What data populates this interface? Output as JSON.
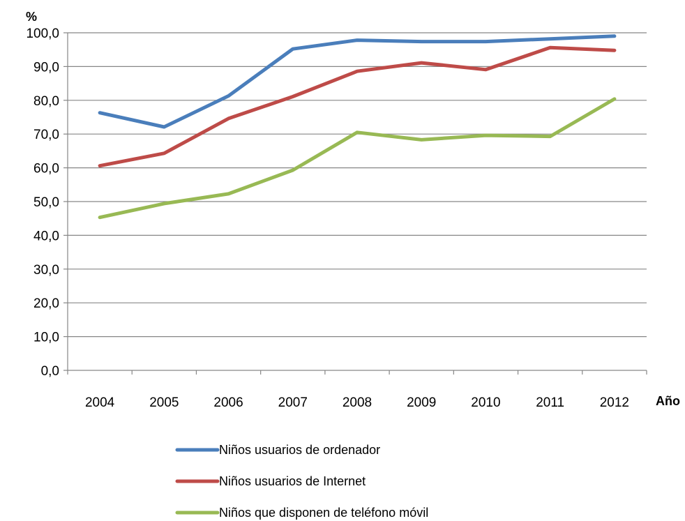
{
  "chart_data": {
    "type": "line",
    "ylabel": "%",
    "xlabel": "Año",
    "ylim": [
      0,
      100
    ],
    "ytick_step": 10,
    "ytick_labels": [
      "0,0",
      "10,0",
      "20,0",
      "30,0",
      "40,0",
      "50,0",
      "60,0",
      "70,0",
      "80,0",
      "90,0",
      "100,0"
    ],
    "categories": [
      "2004",
      "2005",
      "2006",
      "2007",
      "2008",
      "2009",
      "2010",
      "2011",
      "2012"
    ],
    "grid": true,
    "legend_position": "bottom",
    "series": [
      {
        "name": "Niños usuarios de ordenador",
        "color": "#4a7ebb",
        "values": [
          76.3,
          72.1,
          81.3,
          95.2,
          97.8,
          97.4,
          97.4,
          98.2,
          99.0
        ]
      },
      {
        "name": "Niños usuarios de Internet",
        "color": "#be4b48",
        "values": [
          60.6,
          64.3,
          74.6,
          81.1,
          88.6,
          91.1,
          89.1,
          95.6,
          94.8
        ]
      },
      {
        "name": "Niños que disponen de teléfono móvil",
        "color": "#98b954",
        "values": [
          45.3,
          49.4,
          52.3,
          59.3,
          70.5,
          68.3,
          69.6,
          69.3,
          80.4
        ]
      }
    ]
  }
}
